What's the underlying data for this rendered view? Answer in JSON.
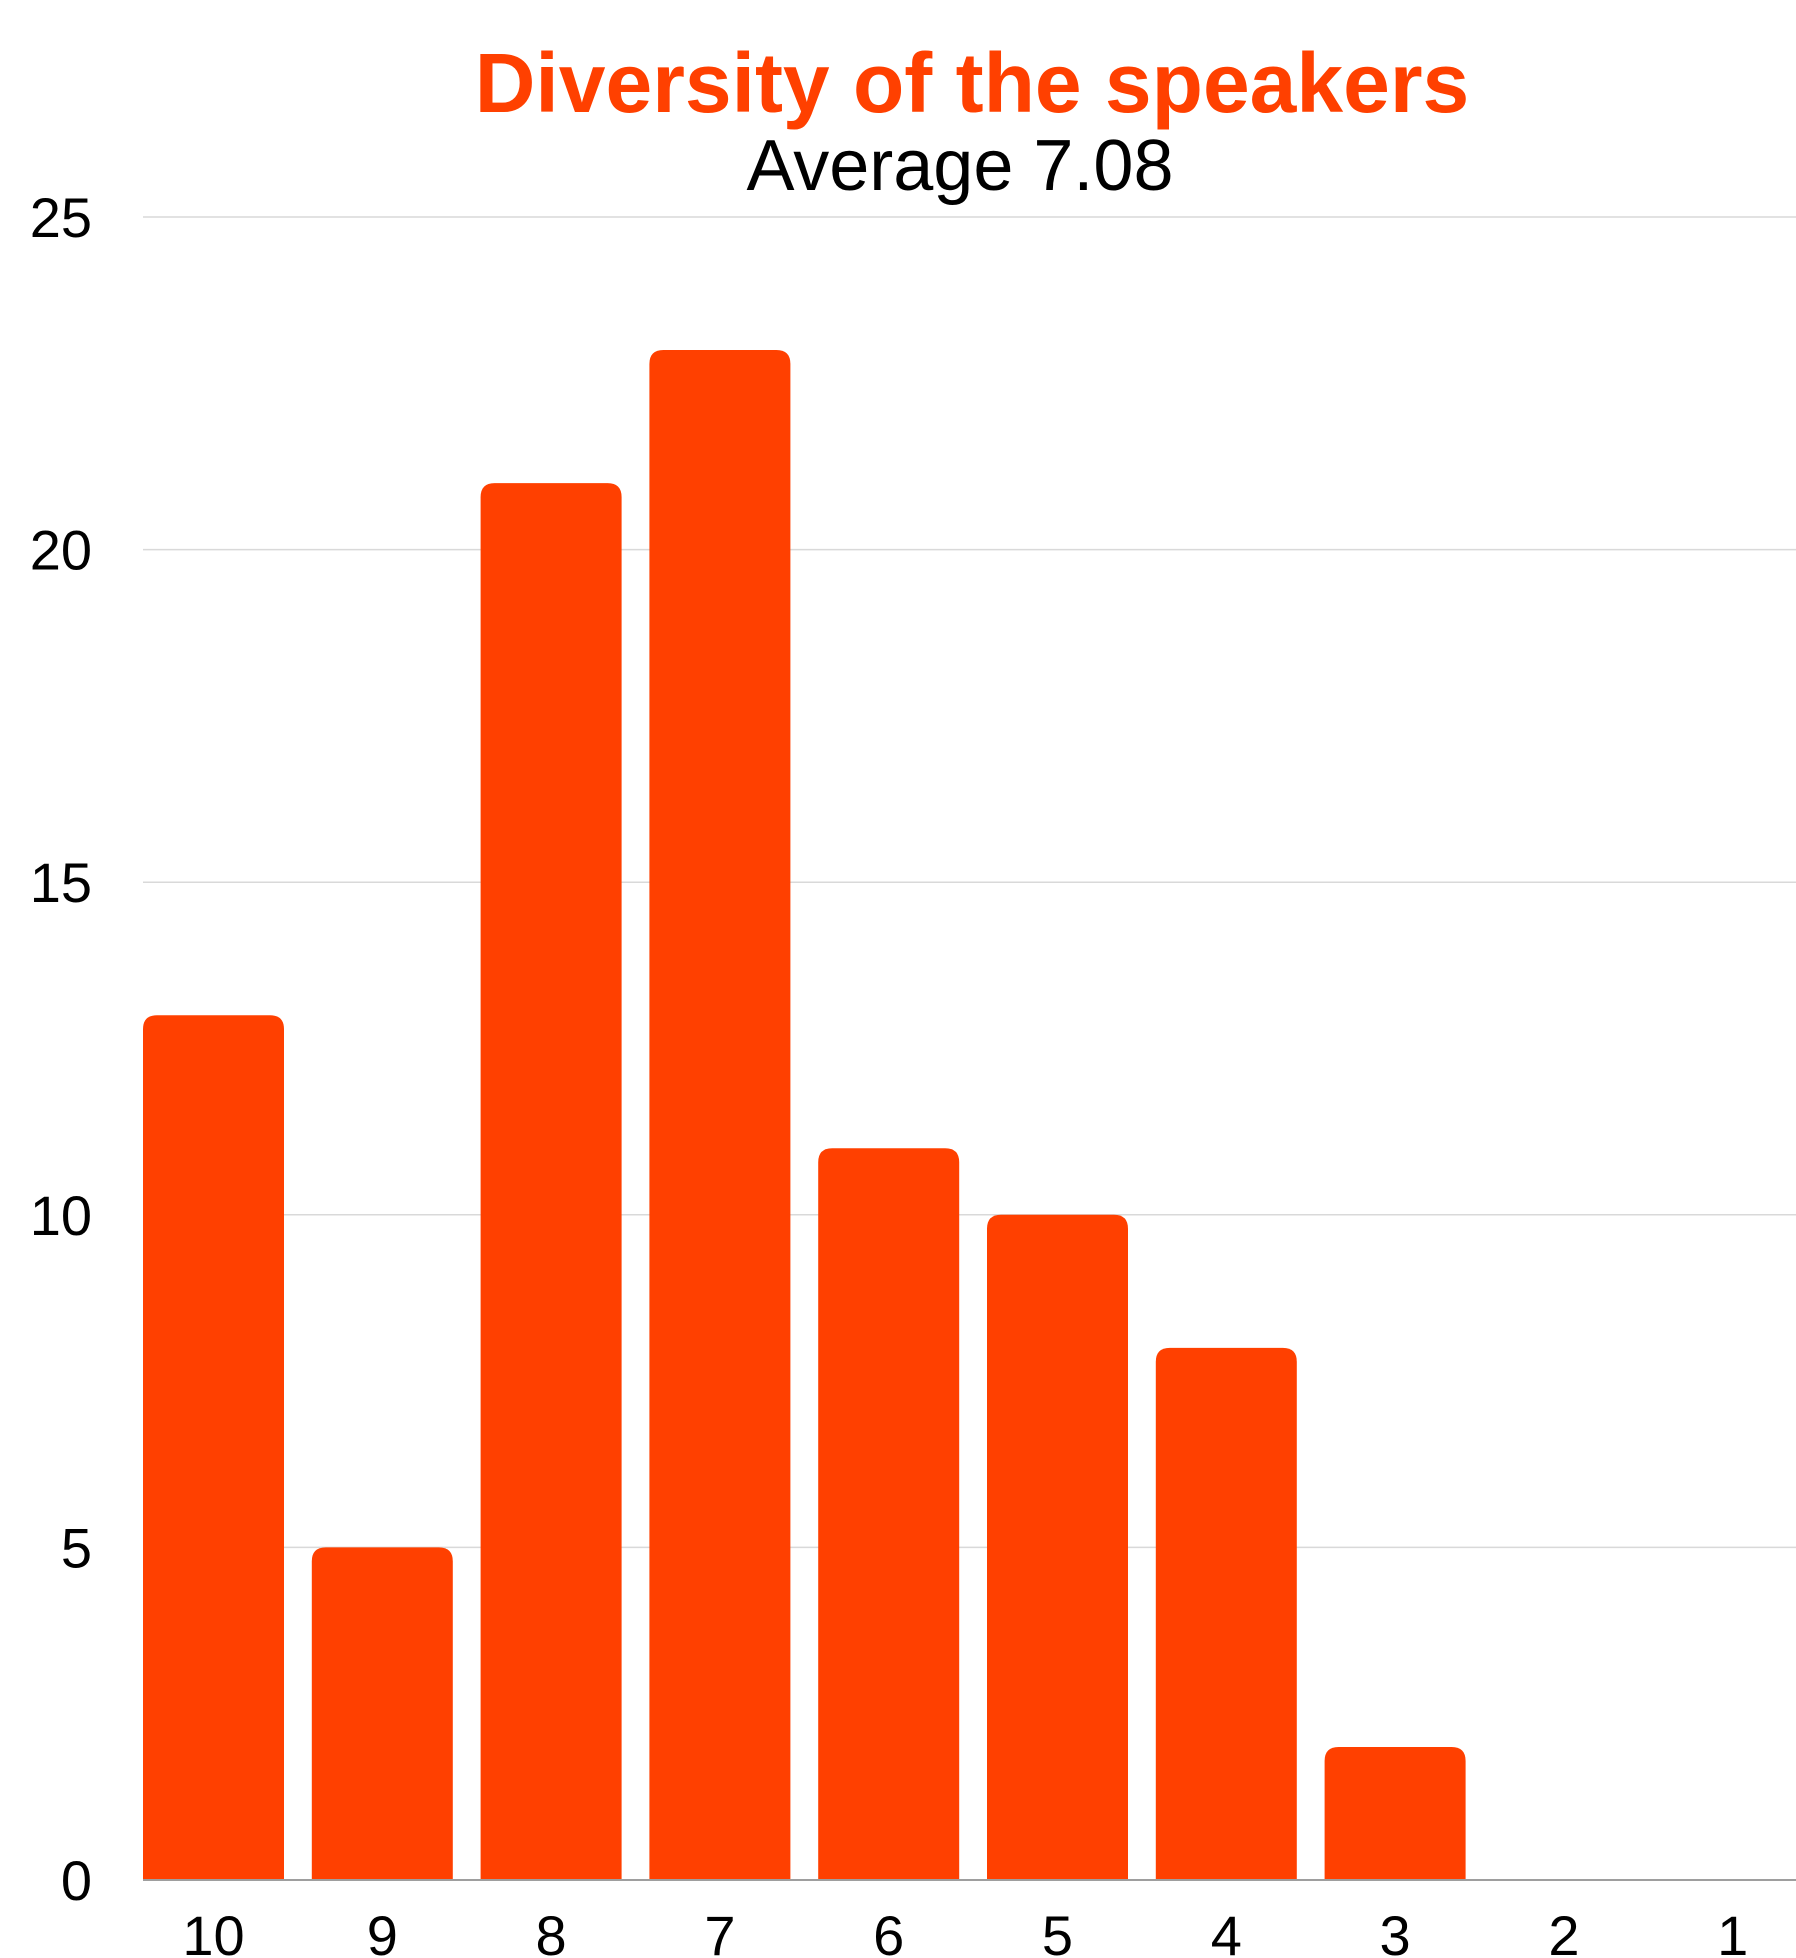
{
  "chart_data": {
    "type": "bar",
    "title": "Diversity of the speakers",
    "subtitle": "Average 7.08",
    "categories": [
      "10",
      "9",
      "8",
      "7",
      "6",
      "5",
      "4",
      "3",
      "2",
      "1"
    ],
    "values": [
      13,
      5,
      21,
      23,
      11,
      10,
      8,
      2,
      0,
      0
    ],
    "ylim": [
      0,
      25
    ],
    "yticks": [
      "0",
      "5",
      "10",
      "15",
      "20",
      "25"
    ],
    "grid": true,
    "legend": "none",
    "colors": {
      "bar": "#FF4000",
      "title": "#FF4000",
      "grid": "#D9D9D9",
      "axis": "#9E9E9E"
    }
  }
}
